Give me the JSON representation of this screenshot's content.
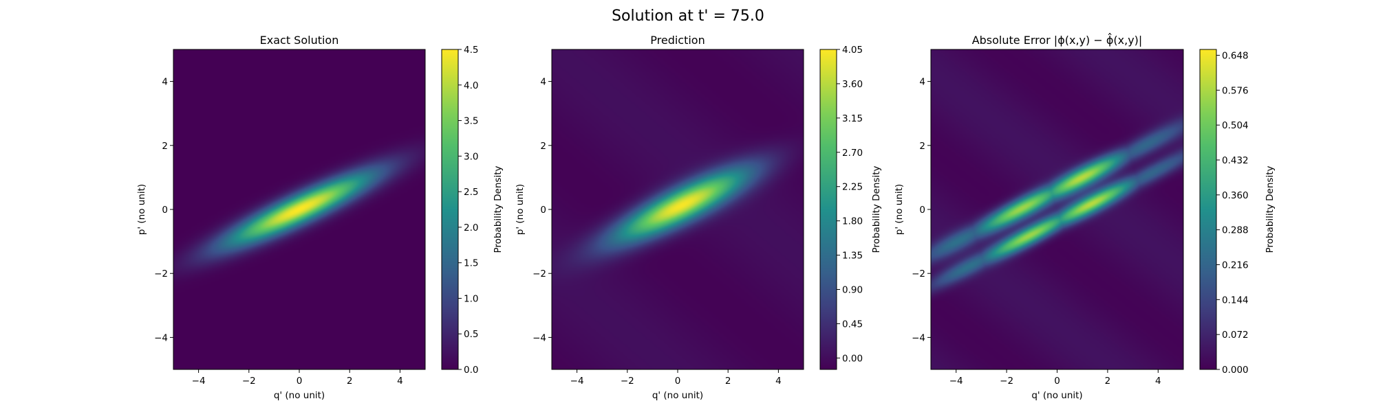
{
  "figure": {
    "title": "Solution at t' = 75.0"
  },
  "colormap": [
    "#440154",
    "#3b528b",
    "#21918c",
    "#5ec962",
    "#fde725"
  ],
  "chart_data": [
    {
      "type": "heatmap",
      "title": "Exact Solution",
      "xlabel": "q' (no unit)",
      "ylabel": "p' (no unit)",
      "xlim": [
        -5,
        5
      ],
      "ylim": [
        -5,
        5
      ],
      "xticks": [
        -4,
        -2,
        0,
        2,
        4
      ],
      "yticks": [
        -4,
        -2,
        0,
        2,
        4
      ],
      "colorbar": {
        "label": "Probability Density",
        "range": [
          0.0,
          4.5
        ],
        "ticks": [
          "0.0",
          "0.5",
          "1.0",
          "1.5",
          "2.0",
          "2.5",
          "3.0",
          "3.5",
          "4.0",
          "4.5"
        ]
      },
      "field": {
        "center": [
          0,
          0
        ],
        "peak": 4.5,
        "angle_deg": 20,
        "sigma_major": 2.2,
        "sigma_minor": 0.32
      }
    },
    {
      "type": "heatmap",
      "title": "Prediction",
      "xlabel": "q' (no unit)",
      "ylabel": "p' (no unit)",
      "xlim": [
        -5,
        5
      ],
      "ylim": [
        -5,
        5
      ],
      "xticks": [
        -4,
        -2,
        0,
        2,
        4
      ],
      "yticks": [
        -4,
        -2,
        0,
        2,
        4
      ],
      "colorbar": {
        "label": "Probability Density",
        "range": [
          -0.15,
          4.05
        ],
        "ticks": [
          "0.00",
          "0.45",
          "0.90",
          "1.35",
          "1.80",
          "2.25",
          "2.70",
          "3.15",
          "3.60",
          "4.05"
        ]
      },
      "field": {
        "center": [
          0.1,
          0.1
        ],
        "peak": 4.05,
        "angle_deg": 21,
        "sigma_major": 2.0,
        "sigma_minor": 0.38
      }
    },
    {
      "type": "heatmap",
      "title": "Absolute Error |ϕ(x,y) − ϕ̂(x,y)|",
      "xlabel": "q' (no unit)",
      "ylabel": "p' (no unit)",
      "xlim": [
        -5,
        5
      ],
      "ylim": [
        -5,
        5
      ],
      "xticks": [
        -4,
        -2,
        0,
        2,
        4
      ],
      "yticks": [
        -4,
        -2,
        0,
        2,
        4
      ],
      "colorbar": {
        "label": "Probability Density",
        "range": [
          0.0,
          0.66
        ],
        "ticks": [
          "0.000",
          "0.072",
          "0.144",
          "0.216",
          "0.288",
          "0.360",
          "0.432",
          "0.504",
          "0.576",
          "0.648"
        ]
      },
      "field": {
        "center": [
          0,
          0
        ],
        "peak": 0.66,
        "angle_deg": 22,
        "sigma_major": 3.0,
        "sigma_minor": 0.45
      }
    }
  ]
}
